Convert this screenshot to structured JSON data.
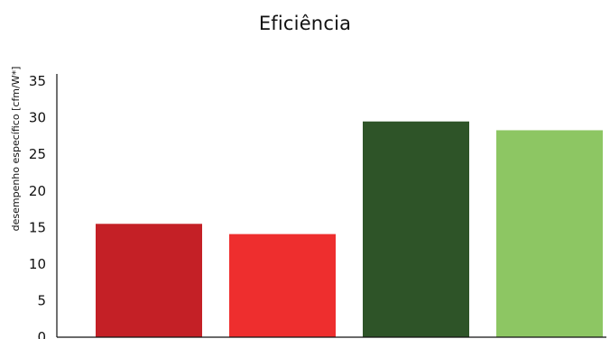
{
  "chart_data": {
    "type": "bar",
    "title": "Eficiência",
    "xlabel": "",
    "ylabel": "desempenho específico [cfm/W*]",
    "categories": [
      "",
      "",
      "",
      ""
    ],
    "values": [
      15.5,
      14.1,
      29.5,
      28.3
    ],
    "colors": [
      "#c42026",
      "#ee2e2e",
      "#2e5428",
      "#8dc663"
    ],
    "ylim": [
      0,
      36
    ],
    "yticks": [
      0,
      5,
      10,
      15,
      20,
      25,
      30,
      35
    ],
    "grid": false,
    "legend": "none"
  }
}
